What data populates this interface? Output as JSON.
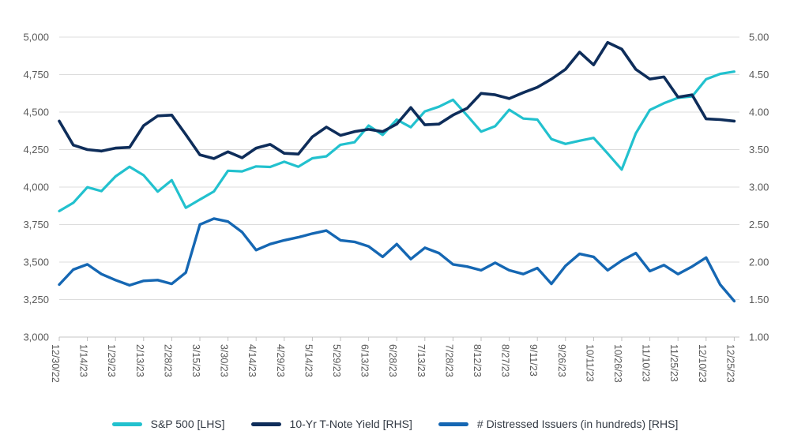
{
  "chart_data": {
    "type": "line",
    "grid": true,
    "legend_position": "bottom",
    "x_labels": [
      "12/30/22",
      "1/14/23",
      "1/29/23",
      "2/13/23",
      "2/28/23",
      "3/15/23",
      "3/30/23",
      "4/14/23",
      "4/29/23",
      "5/14/23",
      "5/29/23",
      "6/13/23",
      "6/28/23",
      "7/13/23",
      "7/28/23",
      "8/12/23",
      "8/27/23",
      "9/11/23",
      "9/26/23",
      "10/11/23",
      "10/26/23",
      "11/10/23",
      "11/25/23",
      "12/10/23",
      "12/25/23"
    ],
    "points_per_label_interval": 2,
    "left_axis": {
      "ticks": [
        "5,000",
        "4,750",
        "4,500",
        "4,250",
        "4,000",
        "3,750",
        "3,500",
        "3,250",
        "3,000"
      ],
      "range": [
        3000,
        5000
      ]
    },
    "right_axis": {
      "ticks": [
        "5.00",
        "4.50",
        "4.00",
        "3.50",
        "3.00",
        "2.50",
        "2.00",
        "1.50",
        "1.00"
      ],
      "range": [
        1.0,
        5.0
      ]
    },
    "series": [
      {
        "name": "S&P 500 [LHS]",
        "axis": "left",
        "color": "#22C1CE",
        "values": [
          3840,
          3895,
          3999,
          3973,
          4071,
          4136,
          4079,
          3970,
          4046,
          3862,
          3917,
          3971,
          4109,
          4105,
          4138,
          4134,
          4169,
          4136,
          4192,
          4205,
          4282,
          4299,
          4410,
          4348,
          4450,
          4399,
          4505,
          4536,
          4582,
          4478,
          4370,
          4406,
          4516,
          4457,
          4450,
          4320,
          4288,
          4309,
          4328,
          4224,
          4117,
          4358,
          4514,
          4559,
          4595,
          4604,
          4719,
          4755,
          4770
        ]
      },
      {
        "name": "10-Yr T-Note Yield [RHS]",
        "axis": "right",
        "color": "#0E2D5A",
        "values": [
          3.88,
          3.56,
          3.5,
          3.48,
          3.52,
          3.53,
          3.82,
          3.95,
          3.96,
          3.7,
          3.43,
          3.38,
          3.47,
          3.39,
          3.52,
          3.57,
          3.45,
          3.44,
          3.67,
          3.8,
          3.69,
          3.74,
          3.77,
          3.74,
          3.84,
          4.06,
          3.83,
          3.84,
          3.96,
          4.05,
          4.25,
          4.23,
          4.18,
          4.26,
          4.33,
          4.44,
          4.57,
          4.8,
          4.63,
          4.93,
          4.84,
          4.57,
          4.44,
          4.47,
          4.2,
          4.23,
          3.91,
          3.9,
          3.88
        ]
      },
      {
        "name": "# Distressed Issuers (in hundreds) [RHS]",
        "axis": "right",
        "color": "#1567B3",
        "values": [
          1.7,
          1.9,
          1.97,
          1.84,
          1.76,
          1.69,
          1.75,
          1.76,
          1.71,
          1.86,
          2.5,
          2.58,
          2.54,
          2.4,
          2.16,
          2.24,
          2.29,
          2.33,
          2.38,
          2.42,
          2.29,
          2.27,
          2.21,
          2.07,
          2.24,
          2.04,
          2.19,
          2.12,
          1.97,
          1.94,
          1.89,
          1.99,
          1.89,
          1.84,
          1.92,
          1.71,
          1.95,
          2.11,
          2.07,
          1.89,
          2.02,
          2.12,
          1.88,
          1.96,
          1.84,
          1.94,
          2.06,
          1.7,
          1.48
        ]
      }
    ]
  }
}
